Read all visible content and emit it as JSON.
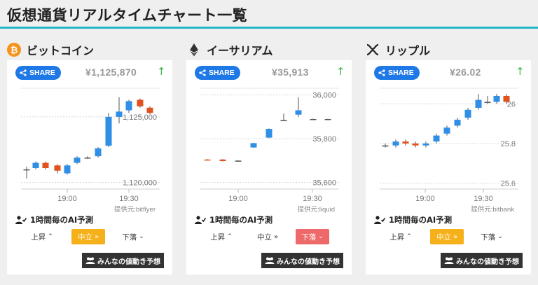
{
  "page": {
    "title": "仮想通貨リアルタイムチャート一覧"
  },
  "colors": {
    "accent": "#22b7c4",
    "share": "#1e78e6",
    "up": "#3bb54a",
    "candle_up": "#2f8fe6",
    "candle_down": "#e2521f",
    "neutral": "#f6b11a",
    "down": "#ee6a6a"
  },
  "common": {
    "share_label": "SHARE",
    "ai_label": "1時間毎のAI予測",
    "pred_up": "上昇",
    "pred_neutral": "中立",
    "pred_down": "下落",
    "vote_label": "みんなの値動き予想",
    "up_arrow": "↑"
  },
  "coins": [
    {
      "name": "ビットコイン",
      "icon": "bitcoin-icon",
      "price": "¥1,125,870",
      "provider": "提供元:bitflyer",
      "selected": "neutral",
      "chart_data": {
        "type": "candlestick",
        "y_ticks": [
          "1,125,000",
          "1,120,000"
        ],
        "x_ticks": [
          "19:00",
          "19:30"
        ],
        "ylim": [
          1119500,
          1127500
        ],
        "candles": [
          {
            "o": 1121000,
            "c": 1121000,
            "h": 1121200,
            "l": 1120300
          },
          {
            "o": 1121100,
            "c": 1121500,
            "h": 1121600,
            "l": 1121000
          },
          {
            "o": 1121500,
            "c": 1121100,
            "h": 1121600,
            "l": 1121000
          },
          {
            "o": 1121300,
            "c": 1120900,
            "h": 1121400,
            "l": 1120700
          },
          {
            "o": 1120700,
            "c": 1121300,
            "h": 1121400,
            "l": 1120600
          },
          {
            "o": 1121500,
            "c": 1121900,
            "h": 1122000,
            "l": 1121400
          },
          {
            "o": 1121900,
            "c": 1121900,
            "h": 1122000,
            "l": 1121800
          },
          {
            "o": 1122000,
            "c": 1122600,
            "h": 1122700,
            "l": 1121900
          },
          {
            "o": 1122800,
            "c": 1125000,
            "h": 1125300,
            "l": 1122700
          },
          {
            "o": 1125000,
            "c": 1125400,
            "h": 1126500,
            "l": 1124500
          },
          {
            "o": 1125500,
            "c": 1126200,
            "h": 1126300,
            "l": 1125300
          },
          {
            "o": 1126300,
            "c": 1125800,
            "h": 1126400,
            "l": 1125700
          },
          {
            "o": 1125700,
            "c": 1125300,
            "h": 1125800,
            "l": 1125200
          }
        ]
      }
    },
    {
      "name": "イーサリアム",
      "icon": "ethereum-icon",
      "price": "¥35,913",
      "provider": "提供元:liquid",
      "selected": "down",
      "chart_data": {
        "type": "candlestick",
        "y_ticks": [
          "36,000",
          "35,800",
          "35,600"
        ],
        "x_ticks": [
          "19:00",
          "19:30"
        ],
        "ylim": [
          35570,
          36050
        ],
        "candles": [
          {
            "o": 35705,
            "c": 35703,
            "h": 35707,
            "l": 35701
          },
          {
            "o": 35705,
            "c": 35698,
            "h": 35707,
            "l": 35696
          },
          {
            "o": 35700,
            "c": 35700,
            "h": 35702,
            "l": 35698
          },
          {
            "o": 35760,
            "c": 35780,
            "h": 35782,
            "l": 35758
          },
          {
            "o": 35805,
            "c": 35845,
            "h": 35847,
            "l": 35803
          },
          {
            "o": 35885,
            "c": 35885,
            "h": 35915,
            "l": 35883
          },
          {
            "o": 35910,
            "c": 35930,
            "h": 35990,
            "l": 35900
          },
          {
            "o": 35890,
            "c": 35890,
            "h": 35892,
            "l": 35888
          },
          {
            "o": 35890,
            "c": 35890,
            "h": 35892,
            "l": 35888
          }
        ]
      }
    },
    {
      "name": "リップル",
      "icon": "ripple-icon",
      "price": "¥26.02",
      "provider": "提供元:bitbank",
      "selected": "neutral",
      "chart_data": {
        "type": "candlestick",
        "y_ticks": [
          "26",
          "25.8",
          "25.6"
        ],
        "x_ticks": [
          "19:00",
          "19:30"
        ],
        "ylim": [
          25.57,
          26.1
        ],
        "candles": [
          {
            "o": 25.79,
            "c": 25.79,
            "h": 25.8,
            "l": 25.78
          },
          {
            "o": 25.79,
            "c": 25.81,
            "h": 25.82,
            "l": 25.78
          },
          {
            "o": 25.81,
            "c": 25.8,
            "h": 25.82,
            "l": 25.79
          },
          {
            "o": 25.8,
            "c": 25.79,
            "h": 25.81,
            "l": 25.78
          },
          {
            "o": 25.79,
            "c": 25.8,
            "h": 25.81,
            "l": 25.78
          },
          {
            "o": 25.81,
            "c": 25.84,
            "h": 25.85,
            "l": 25.8
          },
          {
            "o": 25.85,
            "c": 25.88,
            "h": 25.89,
            "l": 25.84
          },
          {
            "o": 25.89,
            "c": 25.92,
            "h": 25.93,
            "l": 25.88
          },
          {
            "o": 25.93,
            "c": 25.97,
            "h": 25.98,
            "l": 25.92
          },
          {
            "o": 25.98,
            "c": 26.02,
            "h": 26.05,
            "l": 25.97
          },
          {
            "o": 26.01,
            "c": 26.01,
            "h": 26.04,
            "l": 26.0
          },
          {
            "o": 26.01,
            "c": 26.04,
            "h": 26.05,
            "l": 26.0
          },
          {
            "o": 26.04,
            "c": 26.01,
            "h": 26.05,
            "l": 26.0
          }
        ]
      }
    }
  ]
}
